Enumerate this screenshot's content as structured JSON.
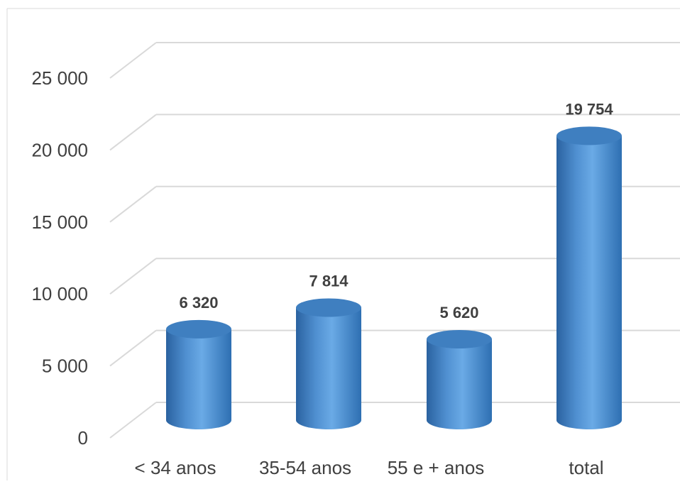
{
  "chart_data": {
    "type": "bar",
    "categories": [
      "< 34 anos",
      "35-54 anos",
      "55 e + anos",
      "total"
    ],
    "values": [
      6320,
      7814,
      5620,
      19754
    ],
    "data_labels": [
      "6 320",
      "7 814",
      "5 620",
      "19 754"
    ],
    "y_ticks": [
      0,
      5000,
      10000,
      15000,
      20000,
      25000
    ],
    "y_tick_labels": [
      "0",
      "5 000",
      "10 000",
      "15 000",
      "20 000",
      "25 000"
    ],
    "ylim": [
      0,
      25000
    ],
    "grid": true,
    "legend": "none",
    "bar_shape": "3d cylinder",
    "colors": {
      "bar_light": "#5b9bd5",
      "bar_mid": "#2e75b6",
      "bar_top": "#3f7fc0",
      "grid": "#d9d9d9",
      "text": "#404040"
    }
  }
}
